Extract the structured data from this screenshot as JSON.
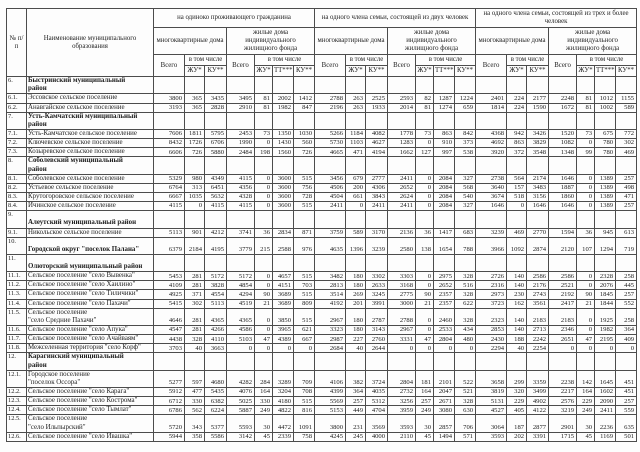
{
  "table": {
    "num_header": "№\nп/п",
    "name_header": "Наименование муниципального образования",
    "groups": [
      {
        "title": "на  одиноко  проживающего гражданина"
      },
      {
        "title": "на  одного члена  семьи, состоящей  из двух человек"
      },
      {
        "title": "на  одного члена  семьи, состоящей из трех и более человек"
      }
    ],
    "subgroup_mk": "многоквартирные дома",
    "subgroup_ind": "жилые дома индивидуального жилищного фонда",
    "total_label": "Всего",
    "incl_label": "в том числе",
    "labels": {
      "zhu": "ЖУ*",
      "ku": "КУ**",
      "tt": "ТТ***"
    },
    "rows": [
      {
        "num": "6.",
        "name": "Быстринский  муниципальный\nрайон",
        "bold": true,
        "values": []
      },
      {
        "num": "6.1.",
        "name": "Эссовское  сельское поселение",
        "bold": false,
        "values": [
          3800,
          365,
          3435,
          3495,
          81,
          2002,
          1412,
          2788,
          263,
          2525,
          2593,
          82,
          1287,
          1224,
          2401,
          224,
          2177,
          2248,
          81,
          1012,
          1155
        ]
      },
      {
        "num": "6.2.",
        "name": "Анавгайское сельское поселение",
        "bold": false,
        "values": [
          3193,
          365,
          2828,
          2910,
          81,
          1982,
          847,
          2196,
          263,
          1933,
          2014,
          81,
          1274,
          659,
          1814,
          224,
          1590,
          1672,
          81,
          1002,
          589
        ]
      },
      {
        "num": "7.",
        "name": "Усть-Камчатский  муниципальный\nрайон",
        "bold": true,
        "values": []
      },
      {
        "num": "7.1.",
        "name": "Усть-Камчатское сельское поселение",
        "bold": false,
        "values": [
          7606,
          1811,
          5795,
          2453,
          73,
          1350,
          1030,
          5266,
          1184,
          4082,
          1778,
          73,
          863,
          842,
          4368,
          942,
          3426,
          1520,
          73,
          675,
          772
        ]
      },
      {
        "num": "7.2.",
        "name": "Ключевское  сельское  поселение",
        "bold": false,
        "values": [
          8432,
          1726,
          6706,
          1990,
          0,
          1430,
          560,
          5730,
          1103,
          4627,
          1283,
          0,
          910,
          373,
          4692,
          863,
          3829,
          1082,
          0,
          780,
          302
        ]
      },
      {
        "num": "7.3.",
        "name": "Козыревское  сельское поселение",
        "bold": false,
        "values": [
          6606,
          726,
          5880,
          2484,
          198,
          1560,
          726,
          4665,
          471,
          4194,
          1662,
          127,
          997,
          538,
          3920,
          372,
          3548,
          1348,
          99,
          780,
          469
        ]
      },
      {
        "num": "8.",
        "name": "Соболевский  муниципальный\nрайон",
        "bold": true,
        "values": []
      },
      {
        "num": "8.1.",
        "name": "Соболевское  сельское поселение",
        "bold": false,
        "values": [
          5329,
          980,
          4349,
          4115,
          0,
          3600,
          515,
          3456,
          679,
          2777,
          2411,
          0,
          2084,
          327,
          2738,
          564,
          2174,
          1646,
          0,
          1389,
          257
        ]
      },
      {
        "num": "8.2.",
        "name": "Устьевое  сельское  поселение",
        "bold": false,
        "values": [
          6764,
          313,
          6451,
          4356,
          0,
          3600,
          756,
          4506,
          200,
          4306,
          2652,
          0,
          2084,
          568,
          3640,
          157,
          3483,
          1887,
          0,
          1389,
          498
        ]
      },
      {
        "num": "8.3.",
        "name": "Крутогоровское  сельское поселение",
        "bold": false,
        "values": [
          6667,
          1035,
          5632,
          4328,
          0,
          3600,
          728,
          4504,
          661,
          3843,
          2624,
          0,
          2084,
          540,
          3674,
          518,
          3156,
          1860,
          0,
          1389,
          471
        ]
      },
      {
        "num": "8.4.",
        "name": "Ичинское  сельское  поселение",
        "bold": false,
        "values": [
          4115,
          0,
          4115,
          4115,
          0,
          3600,
          515,
          2411,
          0,
          2411,
          2411,
          0,
          2084,
          327,
          1646,
          0,
          1646,
          1646,
          0,
          1389,
          257
        ]
      },
      {
        "num": "9.",
        "name": "\nАлеутский муниципальный район",
        "bold": true,
        "values": []
      },
      {
        "num": "9.1.",
        "name": "Никольское  сельское поселение",
        "bold": false,
        "values": [
          5113,
          901,
          4212,
          3741,
          36,
          2834,
          871,
          3759,
          589,
          3170,
          2136,
          36,
          1417,
          683,
          3239,
          469,
          2770,
          1594,
          36,
          945,
          613
        ]
      },
      {
        "num": "10.",
        "name": "\nГородской округ  \"поселок Палана\"",
        "bold": true,
        "values": [
          6379,
          2184,
          4195,
          3779,
          215,
          2588,
          976,
          4635,
          1396,
          3239,
          2580,
          138,
          1654,
          788,
          3966,
          1092,
          2874,
          2120,
          107,
          1294,
          719
        ]
      },
      {
        "num": "11.",
        "name": "\nОлюторский  муниципальный район",
        "bold": true,
        "values": []
      },
      {
        "num": "11.1.",
        "name": "Сельское поселение \"село Вывенка\"",
        "bold": false,
        "values": [
          5453,
          281,
          5172,
          5172,
          0,
          4657,
          515,
          3482,
          180,
          3302,
          3303,
          0,
          2975,
          328,
          2726,
          140,
          2586,
          2586,
          0,
          2328,
          258
        ]
      },
      {
        "num": "11.2.",
        "name": "Сельское поселение \"село Хаилино\"",
        "bold": false,
        "values": [
          4109,
          281,
          3828,
          4854,
          0,
          4151,
          703,
          2813,
          180,
          2633,
          3168,
          0,
          2652,
          516,
          2316,
          140,
          2176,
          2521,
          0,
          2076,
          445
        ]
      },
      {
        "num": "11.3.",
        "name": "Сельское поселение \"село Тиличики\"",
        "bold": false,
        "values": [
          4925,
          371,
          4554,
          4294,
          90,
          3689,
          515,
          3514,
          269,
          3245,
          2775,
          90,
          2357,
          328,
          2973,
          230,
          2743,
          2192,
          90,
          1845,
          257
        ]
      },
      {
        "num": "11.4.",
        "name": "Сельское поселение \"село Пахачи\"",
        "bold": false,
        "values": [
          5415,
          302,
          5113,
          4519,
          21,
          3689,
          809,
          4192,
          201,
          3991,
          3000,
          21,
          2357,
          622,
          3723,
          162,
          3561,
          2417,
          21,
          1844,
          552
        ]
      },
      {
        "num": "11.5.",
        "name": "Сельское поселение\n\"село Средние Пахачи\"",
        "bold": false,
        "values": [
          4646,
          281,
          4365,
          4365,
          0,
          3850,
          515,
          2967,
          180,
          2787,
          2788,
          0,
          2460,
          328,
          2323,
          140,
          2183,
          2183,
          0,
          1925,
          258
        ]
      },
      {
        "num": "11.6.",
        "name": "Сельское поселение \"село Апука\"",
        "bold": false,
        "values": [
          4547,
          281,
          4266,
          4586,
          0,
          3965,
          621,
          3323,
          180,
          3143,
          2967,
          0,
          2533,
          434,
          2853,
          140,
          2713,
          2346,
          0,
          1982,
          364
        ]
      },
      {
        "num": "11.7.",
        "name": "Сельское поселение \"село Ачайваям\"",
        "bold": false,
        "values": [
          4438,
          328,
          4110,
          5103,
          47,
          4389,
          667,
          2987,
          227,
          2760,
          3331,
          47,
          2804,
          480,
          2430,
          188,
          2242,
          2651,
          47,
          2195,
          409
        ]
      },
      {
        "num": "11.8.",
        "name": "Межселенная территория \"село Корф\"",
        "bold": false,
        "values": [
          3703,
          40,
          3663,
          0,
          0,
          0,
          0,
          2684,
          40,
          2644,
          0,
          0,
          0,
          0,
          2294,
          40,
          2254,
          0,
          0,
          0,
          0
        ]
      },
      {
        "num": "12.",
        "name": "Карагинский  муниципальный\nрайон",
        "bold": true,
        "values": []
      },
      {
        "num": "12.1.",
        "name": "Городское поселение\n\"поселок  Оссора\"",
        "bold": false,
        "values": [
          5277,
          597,
          4680,
          4282,
          284,
          3289,
          709,
          4106,
          382,
          3724,
          2804,
          181,
          2101,
          522,
          3658,
          299,
          3359,
          2238,
          142,
          1645,
          451
        ]
      },
      {
        "num": "12.2.",
        "name": "Сельское поселение \"село Карага\"",
        "bold": false,
        "values": [
          5912,
          477,
          5435,
          4076,
          164,
          3204,
          708,
          4399,
          364,
          4035,
          2732,
          164,
          2047,
          521,
          3819,
          320,
          3499,
          2217,
          164,
          1602,
          451
        ]
      },
      {
        "num": "12.3.",
        "name": "Сельское поселение \"село Кострома\"",
        "bold": false,
        "values": [
          6712,
          330,
          6382,
          5025,
          330,
          4180,
          515,
          5569,
          257,
          5312,
          3256,
          257,
          2671,
          328,
          5131,
          229,
          4902,
          2576,
          229,
          2090,
          257
        ]
      },
      {
        "num": "12.4.",
        "name": "Сельское поселение \"село Тымлат\"",
        "bold": false,
        "values": [
          6786,
          562,
          6224,
          5887,
          249,
          4822,
          816,
          5153,
          449,
          4704,
          3959,
          249,
          3080,
          630,
          4527,
          405,
          4122,
          3219,
          249,
          2411,
          559
        ]
      },
      {
        "num": "12.5.",
        "name": "Сельское поселение\n\"село Ильпырский\"",
        "bold": false,
        "values": [
          5720,
          343,
          5377,
          5593,
          30,
          4472,
          1091,
          3800,
          231,
          3569,
          3593,
          30,
          2857,
          706,
          3064,
          187,
          2877,
          2901,
          30,
          2236,
          635
        ]
      },
      {
        "num": "12.6.",
        "name": "Сельское поселение \"село Ивашка\"",
        "bold": false,
        "values": [
          5944,
          358,
          5586,
          3142,
          45,
          2339,
          758,
          4245,
          245,
          4000,
          2110,
          45,
          1494,
          571,
          3593,
          202,
          3391,
          1715,
          45,
          1169,
          501
        ]
      }
    ]
  }
}
